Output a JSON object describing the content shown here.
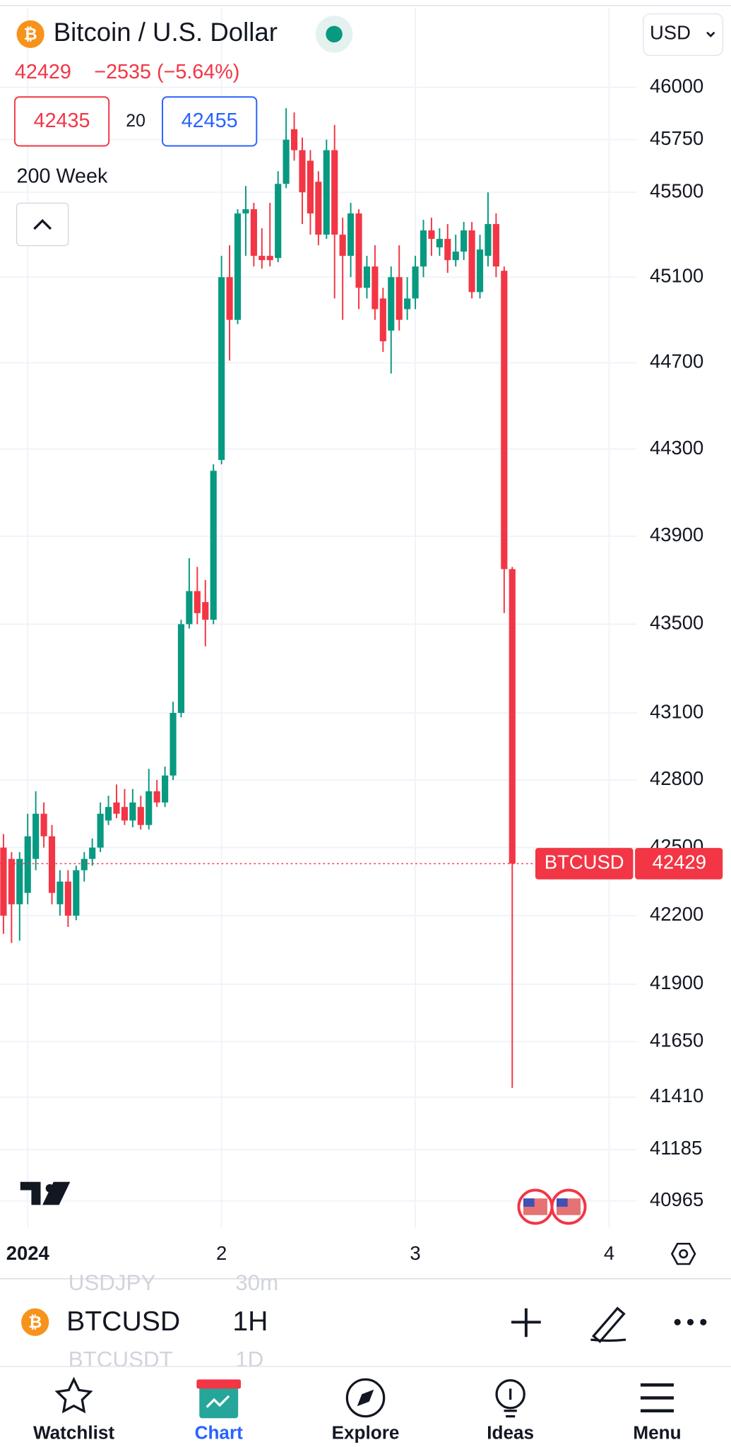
{
  "header": {
    "symbol_name": "Bitcoin / U.S. Dollar",
    "last": "42429",
    "change": "−2535 (−5.64%)",
    "currency": "USD"
  },
  "quote": {
    "bid": "42435",
    "spread": "20",
    "ask": "42455"
  },
  "indicator": "200 Week",
  "chart_data": {
    "type": "candlestick",
    "log": true,
    "grid": true,
    "up_color": "#089981",
    "down_color": "#f23645",
    "x": [
      -3,
      -2,
      -1,
      0,
      1,
      2,
      3,
      4,
      5,
      6,
      7,
      8,
      9,
      10,
      11,
      12,
      13,
      14,
      15,
      16,
      17,
      18,
      19,
      20,
      21,
      22,
      23,
      24,
      25,
      26,
      27,
      28,
      29,
      30,
      31,
      32,
      33,
      34,
      35,
      36,
      37,
      38,
      39,
      40,
      41,
      42,
      43,
      44,
      45,
      46,
      47,
      48,
      49,
      50,
      51,
      52,
      53,
      54,
      55,
      56,
      57,
      58,
      59,
      60
    ],
    "open": [
      42500,
      42450,
      42250,
      42300,
      42450,
      42650,
      42550,
      42250,
      42350,
      42200,
      42400,
      42450,
      42500,
      42620,
      42700,
      42680,
      42620,
      42680,
      42600,
      42750,
      42700,
      42820,
      43100,
      43500,
      43650,
      43600,
      43520,
      44250,
      45100,
      44900,
      45400,
      45420,
      45200,
      45200,
      45190,
      45540,
      45800,
      45700,
      45650,
      45550,
      45300,
      45700,
      45300,
      45200,
      45400,
      45050,
      45150,
      45000,
      44850,
      45100,
      44950,
      45000,
      45150,
      45320,
      45240,
      45280,
      45180,
      45220,
      45320,
      45030,
      45200,
      45350,
      45130,
      43750
    ],
    "high": [
      42560,
      42480,
      42480,
      42650,
      42750,
      42700,
      42600,
      42400,
      42400,
      42420,
      42480,
      42540,
      42700,
      42730,
      42780,
      42760,
      42760,
      42730,
      42850,
      42800,
      42860,
      43150,
      43520,
      43800,
      43760,
      43700,
      44230,
      45200,
      45250,
      45420,
      45530,
      45450,
      45330,
      45450,
      45600,
      45900,
      45880,
      45760,
      45700,
      45600,
      45750,
      45820,
      45380,
      45450,
      45420,
      45200,
      45250,
      45050,
      45150,
      45250,
      45100,
      45200,
      45370,
      45380,
      45330,
      45350,
      45300,
      45360,
      45360,
      45300,
      45500,
      45400,
      45150,
      43760
    ],
    "low": [
      42120,
      42080,
      42090,
      42250,
      42400,
      42500,
      42250,
      42200,
      42150,
      42180,
      42350,
      42420,
      42480,
      42600,
      42630,
      42600,
      42590,
      42580,
      42580,
      42680,
      42680,
      42800,
      43080,
      43480,
      43500,
      43400,
      43500,
      44230,
      44710,
      44880,
      45200,
      45150,
      45140,
      45150,
      45170,
      45520,
      45650,
      45350,
      45300,
      45250,
      45280,
      45000,
      44900,
      45100,
      44950,
      45000,
      44900,
      44750,
      44650,
      44850,
      44900,
      44950,
      45100,
      45200,
      45200,
      45120,
      45150,
      45180,
      45000,
      45000,
      45150,
      45100,
      43550,
      41450
    ],
    "close": [
      42200,
      42250,
      42450,
      42550,
      42650,
      42550,
      42300,
      42350,
      42200,
      42400,
      42450,
      42500,
      42650,
      42680,
      42650,
      42620,
      42700,
      42600,
      42750,
      42700,
      42820,
      43100,
      43500,
      43650,
      43550,
      43520,
      44200,
      45100,
      44900,
      45400,
      45420,
      45200,
      45180,
      45180,
      45540,
      45750,
      45700,
      45500,
      45400,
      45300,
      45700,
      45300,
      45200,
      45400,
      45050,
      45150,
      44950,
      44800,
      45100,
      44900,
      45000,
      45150,
      45320,
      45280,
      45280,
      45180,
      45220,
      45320,
      45030,
      45230,
      45350,
      45150,
      43750,
      42429
    ],
    "xlim": [
      -3.43,
      75.43
    ],
    "xticks": [
      {
        "value": 0,
        "label": "2024"
      },
      {
        "value": 24,
        "label": "2"
      },
      {
        "value": 48,
        "label": "3"
      },
      {
        "value": 72,
        "label": "4"
      }
    ],
    "ylim": [
      40850,
      46420
    ],
    "yticks": [
      46000,
      45750,
      45500,
      45100,
      44700,
      44300,
      43900,
      43500,
      43100,
      42800,
      42500,
      42200,
      41900,
      41650,
      41410,
      41185,
      40965
    ],
    "last_price": {
      "symbol": "BTCUSD",
      "value": 42429
    }
  },
  "symbol_bar": {
    "previous": {
      "symbol": "USDJPY",
      "interval": "30m"
    },
    "current": {
      "symbol": "BTCUSD",
      "interval": "1H"
    },
    "next": {
      "symbol": "BTCUSDT",
      "interval": "1D"
    }
  },
  "tabs": [
    "Watchlist",
    "Chart",
    "Explore",
    "Ideas",
    "Menu"
  ]
}
